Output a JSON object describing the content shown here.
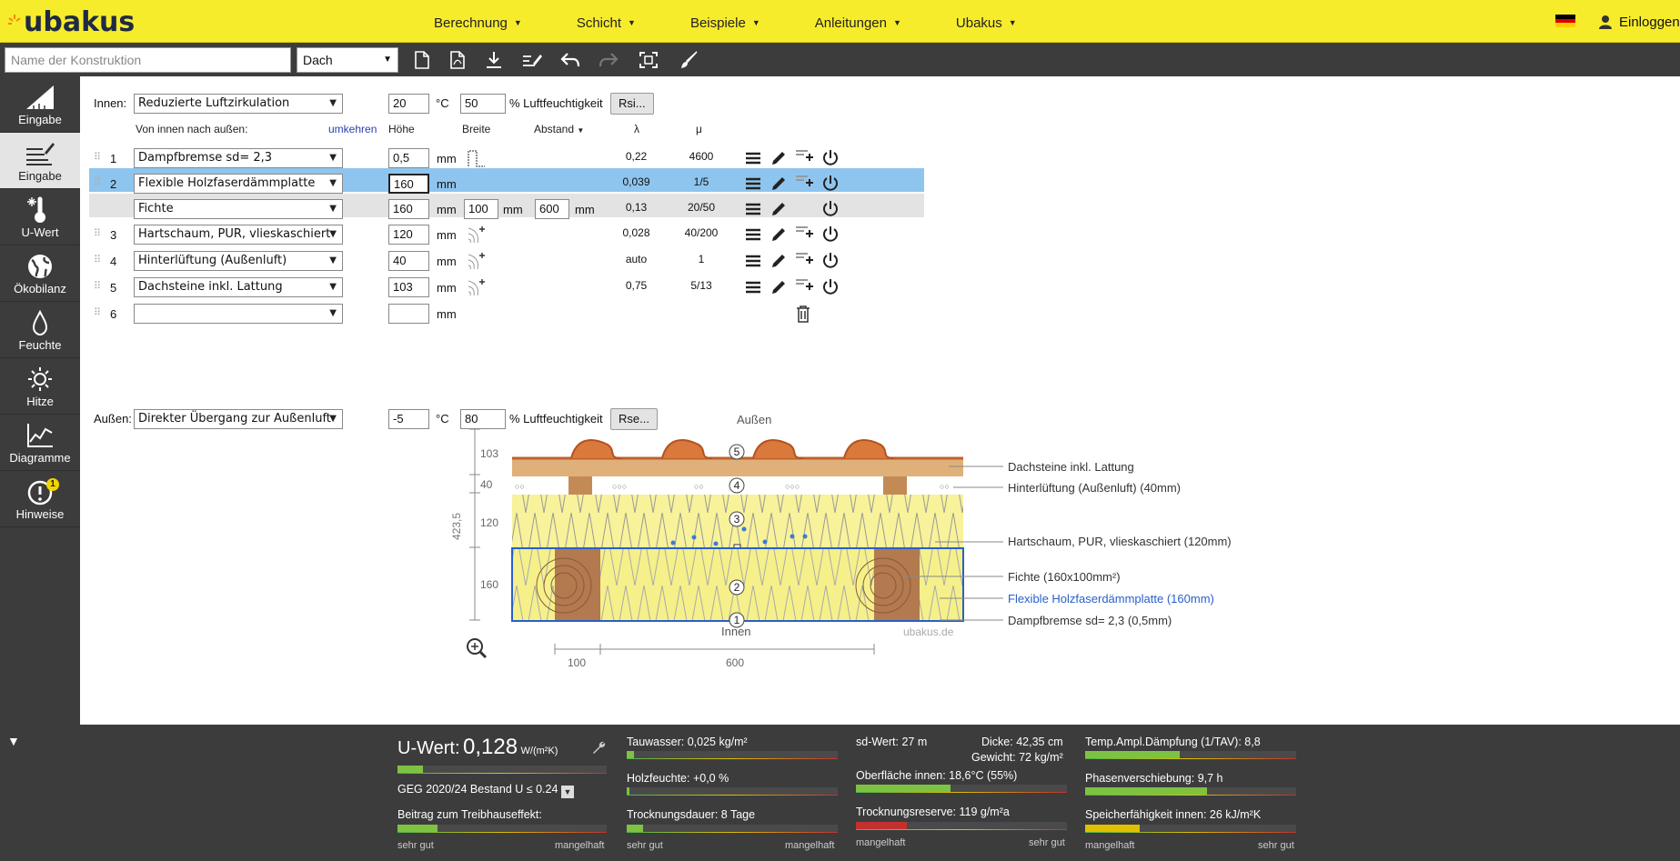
{
  "header": {
    "logo": "ubakus",
    "nav": [
      "Berechnung",
      "Schicht",
      "Beispiele",
      "Anleitungen",
      "Ubakus"
    ],
    "login": "Einloggen"
  },
  "toolbar": {
    "name_placeholder": "Name der Konstruktion",
    "type_value": "Dach"
  },
  "sidebar": [
    {
      "label": "Eingabe",
      "icon": "triangle-ruler-icon"
    },
    {
      "label": "Eingabe",
      "icon": "layers-edit-icon"
    },
    {
      "label": "U-Wert",
      "icon": "thermometer-snow-icon"
    },
    {
      "label": "Ökobilanz",
      "icon": "globe-icon"
    },
    {
      "label": "Feuchte",
      "icon": "droplet-icon"
    },
    {
      "label": "Hitze",
      "icon": "sun-icon"
    },
    {
      "label": "Diagramme",
      "icon": "chart-icon"
    },
    {
      "label": "Hinweise",
      "icon": "alert-icon",
      "badge": "1"
    }
  ],
  "form": {
    "innen_label": "Innen:",
    "innen_value": "Reduzierte Luftzirkulation",
    "innen_temp": "20",
    "innen_hum": "50",
    "unit_c": "°C",
    "unit_hum": "% Luftfeuchtigkeit",
    "rsi": "Rsi...",
    "aussen_label": "Außen:",
    "aussen_value": "Direkter Übergang zur Außenluft",
    "aussen_temp": "-5",
    "aussen_hum": "80",
    "rse": "Rse...",
    "col_order": "Von innen nach außen:",
    "col_reverse": "umkehren",
    "col_hoehe": "Höhe",
    "col_breite": "Breite",
    "col_abstand": "Abstand",
    "col_lambda": "λ",
    "col_mu": "μ",
    "mm": "mm"
  },
  "layers": [
    {
      "n": "1",
      "name": "Dampfbremse sd= 2,3",
      "h": "0,5",
      "lambda": "0,22",
      "mu": "4600"
    },
    {
      "n": "2",
      "name": "Flexible Holzfaserdämmplatte",
      "h": "160",
      "lambda": "0,039",
      "mu": "1/5"
    },
    {
      "n": "",
      "name": "Fichte",
      "h": "160",
      "b": "100",
      "a": "600",
      "lambda": "0,13",
      "mu": "20/50"
    },
    {
      "n": "3",
      "name": "Hartschaum, PUR, vlieskaschiert",
      "h": "120",
      "lambda": "0,028",
      "mu": "40/200"
    },
    {
      "n": "4",
      "name": "Hinterlüftung (Außenluft)",
      "h": "40",
      "lambda": "auto",
      "mu": "1"
    },
    {
      "n": "5",
      "name": "Dachsteine inkl. Lattung",
      "h": "103",
      "lambda": "0,75",
      "mu": "5/13"
    },
    {
      "n": "6",
      "name": "",
      "h": ""
    }
  ],
  "drawing": {
    "top_label": "Außen",
    "bottom_label": "Innen",
    "watermark": "ubakus.de",
    "total": "423,5",
    "dims": [
      "103",
      "40",
      "120",
      "160"
    ],
    "bottom_dims": [
      "100",
      "600"
    ],
    "markers": [
      "5",
      "4",
      "3",
      "2",
      "1"
    ],
    "labels": [
      "Dachsteine inkl. Lattung",
      "Hinterlüftung (Außenluft) (40mm)",
      "Hartschaum, PUR, vlieskaschiert (120mm)",
      "Fichte (160x100mm²)",
      "Flexible Holzfaserdämmplatte (160mm)",
      "Dampfbremse sd= 2,3 (0,5mm)"
    ],
    "colors": {
      "wood": "#b27a4e",
      "insulation": "#f5f08a",
      "tile": "#d9793b",
      "highlight": "#2a5fc8"
    }
  },
  "bottom": {
    "uwert_label": "U-Wert:",
    "uwert_value": "0,128",
    "uwert_unit": "W/(m²K)",
    "geg": "GEG 2020/24 Bestand U ≤ 0.24",
    "treibhaus": "Beitrag zum Treibhauseffekt:",
    "tauwasser": "Tauwasser: 0,025 kg/m²",
    "holzfeuchte": "Holzfeuchte: +0,0 %",
    "trocknung": "Trocknungsdauer: 8 Tage",
    "sd": "sd-Wert: 27 m",
    "dicke": "Dicke: 42,35 cm",
    "gewicht": "Gewicht: 72 kg/m²",
    "oberflaeche": "Oberfläche innen: 18,6°C (55%)",
    "trocknungsreserve": "Trocknungsreserve: 119 g/m²a",
    "temp_ampl": "Temp.Ampl.Dämpfung (1/TAV): 8,8",
    "phase": "Phasenverschiebung: 9,7 h",
    "speicher": "Speicherfähigkeit innen: 26 kJ/m²K",
    "sehr_gut": "sehr gut",
    "mangelhaft": "mangelhaft"
  }
}
